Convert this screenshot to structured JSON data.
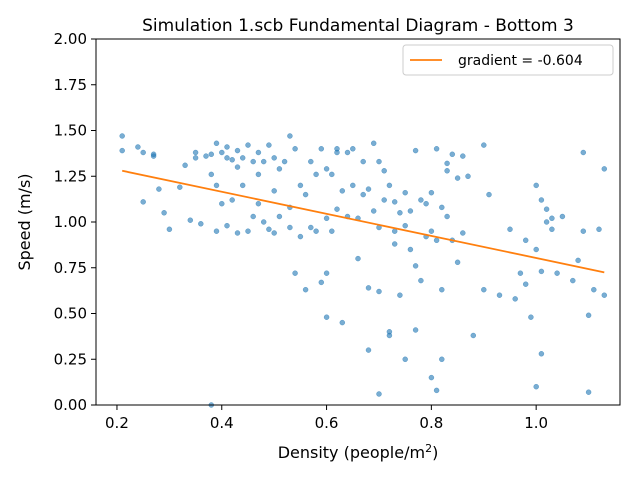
{
  "chart_data": {
    "type": "scatter",
    "title": "Simulation 1.scb Fundamental Diagram - Bottom 3",
    "xlabel": "Density (people/m",
    "xlabel_sup": "2",
    "xlabel_suffix": ")",
    "ylabel": "Speed (m/s)",
    "xlim": [
      0.16,
      1.16
    ],
    "ylim": [
      0.0,
      2.0
    ],
    "xticks": [
      0.2,
      0.4,
      0.6,
      0.8,
      1.0
    ],
    "xtick_labels": [
      "0.2",
      "0.4",
      "0.6",
      "0.8",
      "1.0"
    ],
    "yticks": [
      0.0,
      0.25,
      0.5,
      0.75,
      1.0,
      1.25,
      1.5,
      1.75,
      2.0
    ],
    "ytick_labels": [
      "0.00",
      "0.25",
      "0.50",
      "0.75",
      "1.00",
      "1.25",
      "1.50",
      "1.75",
      "2.00"
    ],
    "grid": false,
    "legend_position": "top-right",
    "point_color": "#1f77b4",
    "line_color": "#ff7f0e",
    "fit_line": {
      "name": "gradient = -0.604",
      "x": [
        0.21,
        1.13
      ],
      "y": [
        1.28,
        0.725
      ]
    },
    "series": [
      {
        "x": [
          0.21,
          0.21,
          0.24,
          0.25,
          0.27,
          0.27,
          0.25,
          0.28,
          0.29,
          0.3,
          0.32,
          0.33,
          0.34,
          0.35,
          0.35,
          0.36,
          0.37,
          0.38,
          0.38,
          0.39,
          0.39,
          0.39,
          0.4,
          0.4,
          0.41,
          0.41,
          0.42,
          0.42,
          0.43,
          0.43,
          0.44,
          0.44,
          0.45,
          0.45,
          0.46,
          0.46,
          0.47,
          0.47,
          0.48,
          0.48,
          0.49,
          0.49,
          0.5,
          0.5,
          0.5,
          0.51,
          0.51,
          0.52,
          0.53,
          0.53,
          0.54,
          0.54,
          0.55,
          0.55,
          0.56,
          0.56,
          0.57,
          0.57,
          0.58,
          0.58,
          0.59,
          0.59,
          0.6,
          0.6,
          0.6,
          0.61,
          0.61,
          0.62,
          0.62,
          0.63,
          0.63,
          0.64,
          0.64,
          0.65,
          0.65,
          0.66,
          0.66,
          0.67,
          0.67,
          0.68,
          0.68,
          0.69,
          0.69,
          0.7,
          0.7,
          0.7,
          0.71,
          0.71,
          0.72,
          0.72,
          0.73,
          0.73,
          0.74,
          0.74,
          0.75,
          0.75,
          0.76,
          0.76,
          0.77,
          0.77,
          0.78,
          0.78,
          0.79,
          0.79,
          0.8,
          0.8,
          0.81,
          0.81,
          0.82,
          0.82,
          0.83,
          0.83,
          0.84,
          0.84,
          0.85,
          0.85,
          0.86,
          0.86,
          0.87,
          0.88,
          0.9,
          0.9,
          0.91,
          0.93,
          0.95,
          0.96,
          0.97,
          0.98,
          0.98,
          0.99,
          1.0,
          1.0,
          1.01,
          1.01,
          1.02,
          1.02,
          1.03,
          1.04,
          1.05,
          1.07,
          1.08,
          1.09,
          1.1,
          1.1,
          1.11,
          1.12,
          1.13,
          1.13,
          0.38,
          0.41,
          0.43,
          0.47,
          0.53,
          0.6,
          0.62,
          0.68,
          0.7,
          0.72,
          0.73,
          0.75,
          0.77,
          0.8,
          0.81,
          0.82,
          0.83,
          1.0,
          1.01,
          1.03,
          1.09
        ],
        "y": [
          1.47,
          1.39,
          1.41,
          1.11,
          1.37,
          1.36,
          1.38,
          1.18,
          1.05,
          0.96,
          1.19,
          1.31,
          1.01,
          1.38,
          1.35,
          0.99,
          1.36,
          1.37,
          1.26,
          1.2,
          0.95,
          1.43,
          1.38,
          1.1,
          1.35,
          0.98,
          1.34,
          1.12,
          1.3,
          0.94,
          1.35,
          1.2,
          1.42,
          0.95,
          1.33,
          1.03,
          1.38,
          1.1,
          1.33,
          1.0,
          1.42,
          0.96,
          1.35,
          1.17,
          0.94,
          1.29,
          1.03,
          1.33,
          1.47,
          0.97,
          1.4,
          0.72,
          1.2,
          0.92,
          1.15,
          0.63,
          1.33,
          0.97,
          1.26,
          0.95,
          1.4,
          0.67,
          1.29,
          1.02,
          0.48,
          1.26,
          0.95,
          1.4,
          1.07,
          1.17,
          0.45,
          1.38,
          1.03,
          1.4,
          1.2,
          1.02,
          0.8,
          1.33,
          1.15,
          1.18,
          0.64,
          1.43,
          1.06,
          1.33,
          0.97,
          0.62,
          1.28,
          1.12,
          1.2,
          0.4,
          1.11,
          0.88,
          1.05,
          0.6,
          1.16,
          0.98,
          1.06,
          0.85,
          1.39,
          0.76,
          1.12,
          0.68,
          1.1,
          0.92,
          1.16,
          0.95,
          1.4,
          0.9,
          1.08,
          0.63,
          1.32,
          1.03,
          1.37,
          0.9,
          1.24,
          0.78,
          1.36,
          0.94,
          1.25,
          0.38,
          1.42,
          0.63,
          1.15,
          0.6,
          0.96,
          0.58,
          0.72,
          0.66,
          0.9,
          0.48,
          1.2,
          0.85,
          1.12,
          0.73,
          1.0,
          1.07,
          1.02,
          0.72,
          1.03,
          0.68,
          0.79,
          0.95,
          0.49,
          0.07,
          0.63,
          0.96,
          1.29,
          0.6,
          0.0,
          1.41,
          1.39,
          1.26,
          1.08,
          0.72,
          1.38,
          0.3,
          0.06,
          0.38,
          0.95,
          0.25,
          0.41,
          0.15,
          0.08,
          0.25,
          1.28,
          0.1,
          0.28,
          0.96,
          1.38
        ]
      }
    ]
  }
}
